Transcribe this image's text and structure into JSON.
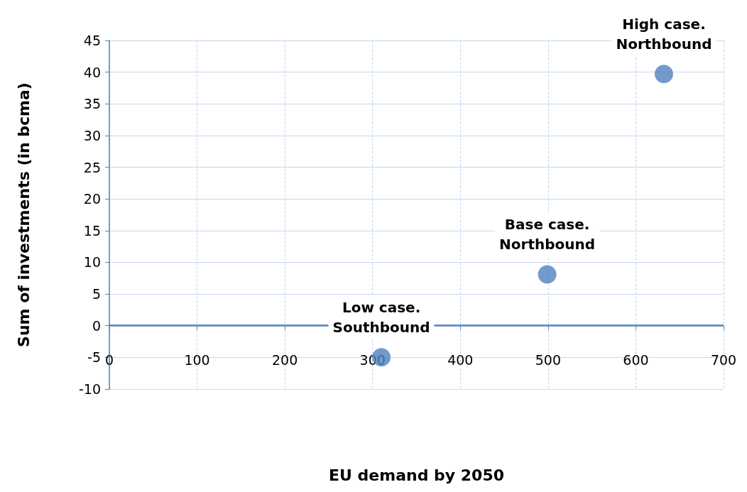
{
  "chart_data": {
    "type": "scatter",
    "xlabel": "EU demand by 2050",
    "ylabel": "Sum of investments (in bcma)",
    "x": [
      310,
      499,
      632
    ],
    "values": [
      -5,
      8.1,
      39.7
    ],
    "color": "#4f81bd",
    "marker": "circle",
    "xlim": [
      0,
      700
    ],
    "xticks": [
      0,
      100,
      200,
      300,
      400,
      500,
      600,
      700
    ],
    "ylim": [
      -10,
      45
    ],
    "yticks": [
      -10,
      -5,
      0,
      5,
      10,
      15,
      20,
      25,
      30,
      35,
      40,
      45
    ],
    "grid": true,
    "ref_lines": [
      {
        "axis": "y",
        "value": 0,
        "color": "#4f81bd"
      }
    ],
    "annotations": [
      {
        "text": "Low case.\nSouthbound",
        "x": 310,
        "y": -5
      },
      {
        "text": "Base case.\nNorthbound",
        "x": 499,
        "y": 8.1
      },
      {
        "text": "High case.\nNorthbound",
        "x": 632,
        "y": 39.7
      }
    ]
  }
}
